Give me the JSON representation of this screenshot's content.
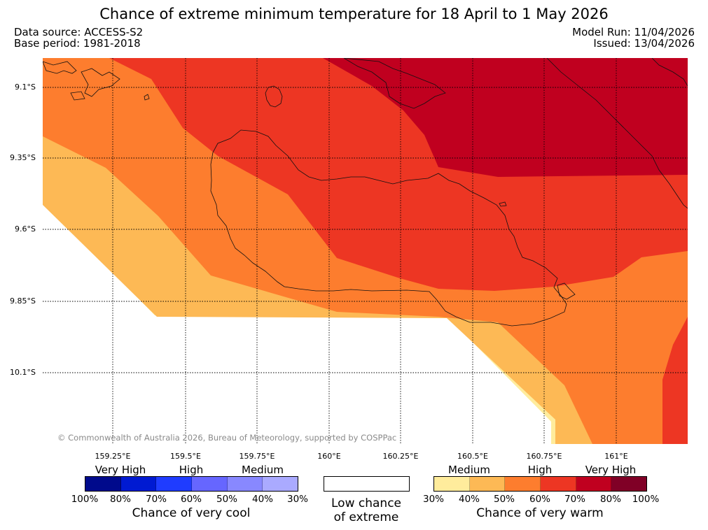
{
  "title": "Chance of extreme minimum temperature for 18 April to 1 May 2026",
  "data_source": "Data source: ACCESS-S2",
  "base_period": "Base period: 1981-2018",
  "model_run": "Model Run: 11/04/2026",
  "issued": "Issued: 13/04/2026",
  "copyright": "© Commonwealth of Australia 2026, Bureau of Meteorology, supported by COSPPac",
  "lat_labels": [
    "9.1°S",
    "9.35°S",
    "9.6°S",
    "9.85°S",
    "10.1°S"
  ],
  "lon_labels": [
    "159.25°E",
    "159.5°E",
    "159.75°E",
    "160°E",
    "160.25°E",
    "160.5°E",
    "160.75°E",
    "161°E"
  ],
  "cool_legend": {
    "levels": [
      "Very High",
      "High",
      "Medium"
    ],
    "percents": [
      "100%",
      "80%",
      "70%",
      "60%",
      "50%",
      "40%",
      "30%"
    ],
    "colors": [
      "#000a8c",
      "#001ad2",
      "#1f3cff",
      "#6666ff",
      "#8888ff",
      "#aaaaff"
    ],
    "caption": "Chance of very cool"
  },
  "neutral_legend": {
    "caption_line1": "Low chance",
    "caption_line2": "of extreme",
    "color": "#ffffff"
  },
  "warm_legend": {
    "levels": [
      "Medium",
      "High",
      "Very High"
    ],
    "percents": [
      "30%",
      "40%",
      "50%",
      "60%",
      "70%",
      "80%",
      "100%"
    ],
    "colors": [
      "#ffec9c",
      "#fdb955",
      "#fd7d2e",
      "#ed3623",
      "#c0001f",
      "#800026"
    ],
    "caption": "Chance of very warm"
  },
  "map_colors": {
    "c30": "#ffec9c",
    "c40": "#fdb955",
    "c50": "#fd7d2e",
    "c60": "#ed3623",
    "c70": "#c0001f"
  }
}
